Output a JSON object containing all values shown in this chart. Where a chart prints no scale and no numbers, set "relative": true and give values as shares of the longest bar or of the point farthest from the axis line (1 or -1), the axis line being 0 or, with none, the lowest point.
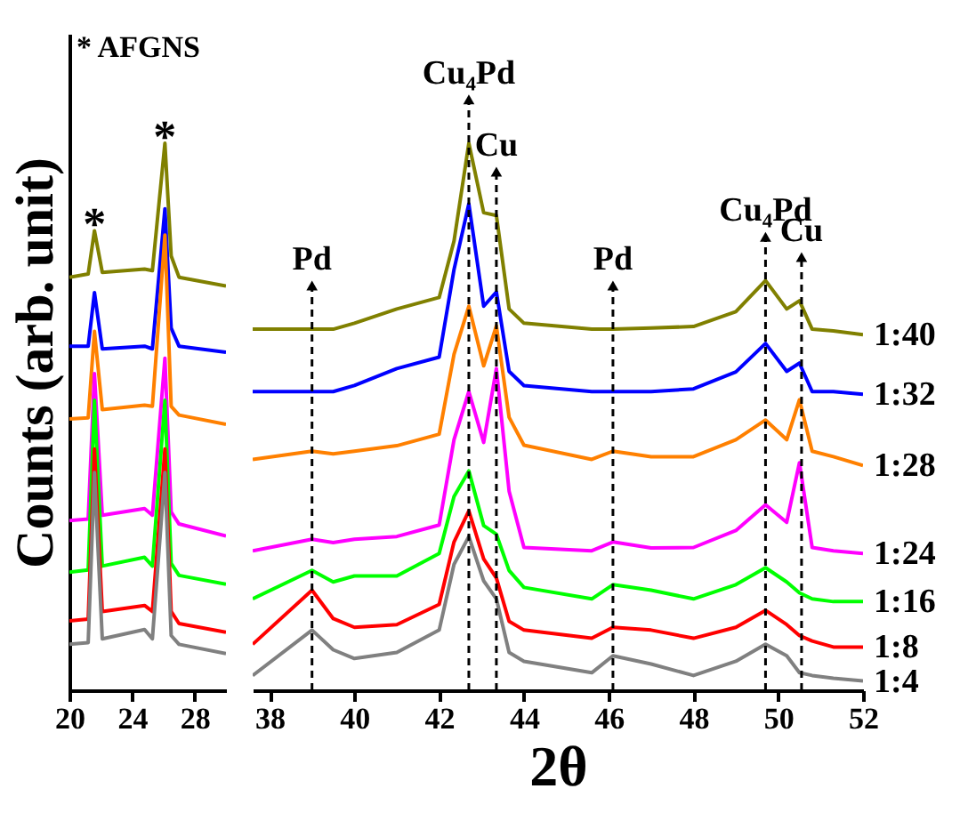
{
  "chart_data": [
    {
      "type": "line",
      "ylabel": "Counts (arb. unit)",
      "relative": true,
      "xlim": [
        20,
        30
      ],
      "xticks": [
        20,
        24,
        28
      ],
      "tick_labels": "x",
      "annotations": [
        "* AFGNS",
        {
          "text": "*",
          "x": 21.6,
          "y": 0.84
        },
        {
          "text": "*",
          "x": 26.1,
          "y": 1.0
        }
      ],
      "x": [
        20,
        21.2,
        21.6,
        22.1,
        24.8,
        25.3,
        26.1,
        26.5,
        27,
        30
      ],
      "series": [
        {
          "color": "#808000",
          "values": [
            0.755,
            0.761,
            0.84,
            0.764,
            0.77,
            0.767,
            1.0,
            0.794,
            0.755,
            0.739
          ]
        },
        {
          "color": "#0000ff",
          "values": [
            0.629,
            0.629,
            0.727,
            0.624,
            0.629,
            0.624,
            0.88,
            0.662,
            0.629,
            0.618
          ]
        },
        {
          "color": "#ff8000",
          "values": [
            0.496,
            0.498,
            0.656,
            0.513,
            0.521,
            0.519,
            0.832,
            0.519,
            0.503,
            0.486
          ]
        },
        {
          "color": "#ff00ff",
          "values": [
            0.31,
            0.313,
            0.579,
            0.32,
            0.332,
            0.32,
            0.607,
            0.326,
            0.304,
            0.282
          ]
        },
        {
          "color": "#00ff00",
          "values": [
            0.216,
            0.22,
            0.53,
            0.227,
            0.243,
            0.227,
            0.53,
            0.232,
            0.21,
            0.194
          ]
        },
        {
          "color": "#ff0000",
          "values": [
            0.127,
            0.13,
            0.441,
            0.144,
            0.155,
            0.144,
            0.441,
            0.144,
            0.122,
            0.106
          ]
        },
        {
          "color": "#808080",
          "values": [
            0.084,
            0.087,
            0.398,
            0.094,
            0.111,
            0.094,
            0.398,
            0.1,
            0.084,
            0.067
          ]
        }
      ]
    },
    {
      "type": "line",
      "xlabel": "2θ",
      "relative": true,
      "xlim": [
        37.6,
        52
      ],
      "xticks": [
        38,
        40,
        42,
        44,
        46,
        48,
        50,
        52
      ],
      "tick_labels": "x",
      "x": [
        37.6,
        39,
        39.5,
        40,
        41,
        42,
        42.35,
        42.7,
        43.05,
        43.35,
        43.65,
        44,
        45.6,
        46.1,
        47,
        48,
        49,
        49.7,
        50.2,
        50.5,
        50.8,
        51.3,
        52
      ],
      "ref_lines": [
        {
          "axis": "x",
          "value": 39,
          "label": "Pd",
          "color": "#000000",
          "line_style": "dashed"
        },
        {
          "axis": "x",
          "value": 42.7,
          "label": "Cu₄Pd",
          "color": "#000000",
          "line_style": "dashed"
        },
        {
          "axis": "x",
          "value": 43.35,
          "label": "Cu",
          "color": "#000000",
          "line_style": "dashed"
        },
        {
          "axis": "x",
          "value": 46.1,
          "label": "Pd",
          "color": "#000000",
          "line_style": "dashed"
        },
        {
          "axis": "x",
          "value": 49.7,
          "label": "Cu₄Pd",
          "color": "#000000",
          "line_style": "dashed"
        },
        {
          "axis": "x",
          "value": 50.55,
          "label": "Cu",
          "color": "#000000",
          "line_style": "dashed"
        }
      ],
      "series": [
        {
          "name": "1:40",
          "color": "#808000",
          "values": [
            0.66,
            0.66,
            0.66,
            0.671,
            0.697,
            0.718,
            0.821,
            1.0,
            0.873,
            0.868,
            0.697,
            0.671,
            0.66,
            0.66,
            0.662,
            0.665,
            0.692,
            0.749,
            0.697,
            0.712,
            0.66,
            0.657,
            0.65
          ]
        },
        {
          "name": "1:32",
          "color": "#0000ff",
          "values": [
            0.546,
            0.546,
            0.546,
            0.557,
            0.588,
            0.609,
            0.769,
            0.889,
            0.702,
            0.728,
            0.583,
            0.557,
            0.546,
            0.546,
            0.546,
            0.551,
            0.582,
            0.634,
            0.583,
            0.598,
            0.546,
            0.546,
            0.541
          ]
        },
        {
          "name": "1:28",
          "color": "#ff8000",
          "values": [
            0.422,
            0.437,
            0.432,
            0.437,
            0.447,
            0.468,
            0.614,
            0.702,
            0.593,
            0.666,
            0.499,
            0.448,
            0.422,
            0.437,
            0.427,
            0.427,
            0.458,
            0.494,
            0.458,
            0.531,
            0.437,
            0.427,
            0.411
          ]
        },
        {
          "name": "1:24",
          "color": "#ff00ff",
          "values": [
            0.255,
            0.276,
            0.27,
            0.276,
            0.281,
            0.302,
            0.458,
            0.546,
            0.453,
            0.588,
            0.364,
            0.261,
            0.255,
            0.271,
            0.26,
            0.261,
            0.292,
            0.339,
            0.307,
            0.416,
            0.261,
            0.255,
            0.25
          ]
        },
        {
          "name": "1:16",
          "color": "#00ff00",
          "values": [
            0.167,
            0.219,
            0.198,
            0.209,
            0.209,
            0.25,
            0.354,
            0.401,
            0.301,
            0.285,
            0.219,
            0.188,
            0.167,
            0.193,
            0.183,
            0.167,
            0.193,
            0.224,
            0.198,
            0.178,
            0.167,
            0.162,
            0.162
          ]
        },
        {
          "name": "1:8",
          "color": "#ff0000",
          "values": [
            0.084,
            0.183,
            0.131,
            0.115,
            0.12,
            0.157,
            0.271,
            0.328,
            0.24,
            0.205,
            0.126,
            0.11,
            0.095,
            0.115,
            0.11,
            0.095,
            0.115,
            0.146,
            0.12,
            0.1,
            0.09,
            0.079,
            0.079
          ]
        },
        {
          "name": "1:4",
          "color": "#808080",
          "values": [
            0.027,
            0.11,
            0.074,
            0.058,
            0.069,
            0.11,
            0.23,
            0.281,
            0.2,
            0.167,
            0.069,
            0.053,
            0.032,
            0.063,
            0.048,
            0.027,
            0.053,
            0.084,
            0.063,
            0.032,
            0.027,
            0.022,
            0.017
          ]
        }
      ]
    }
  ]
}
